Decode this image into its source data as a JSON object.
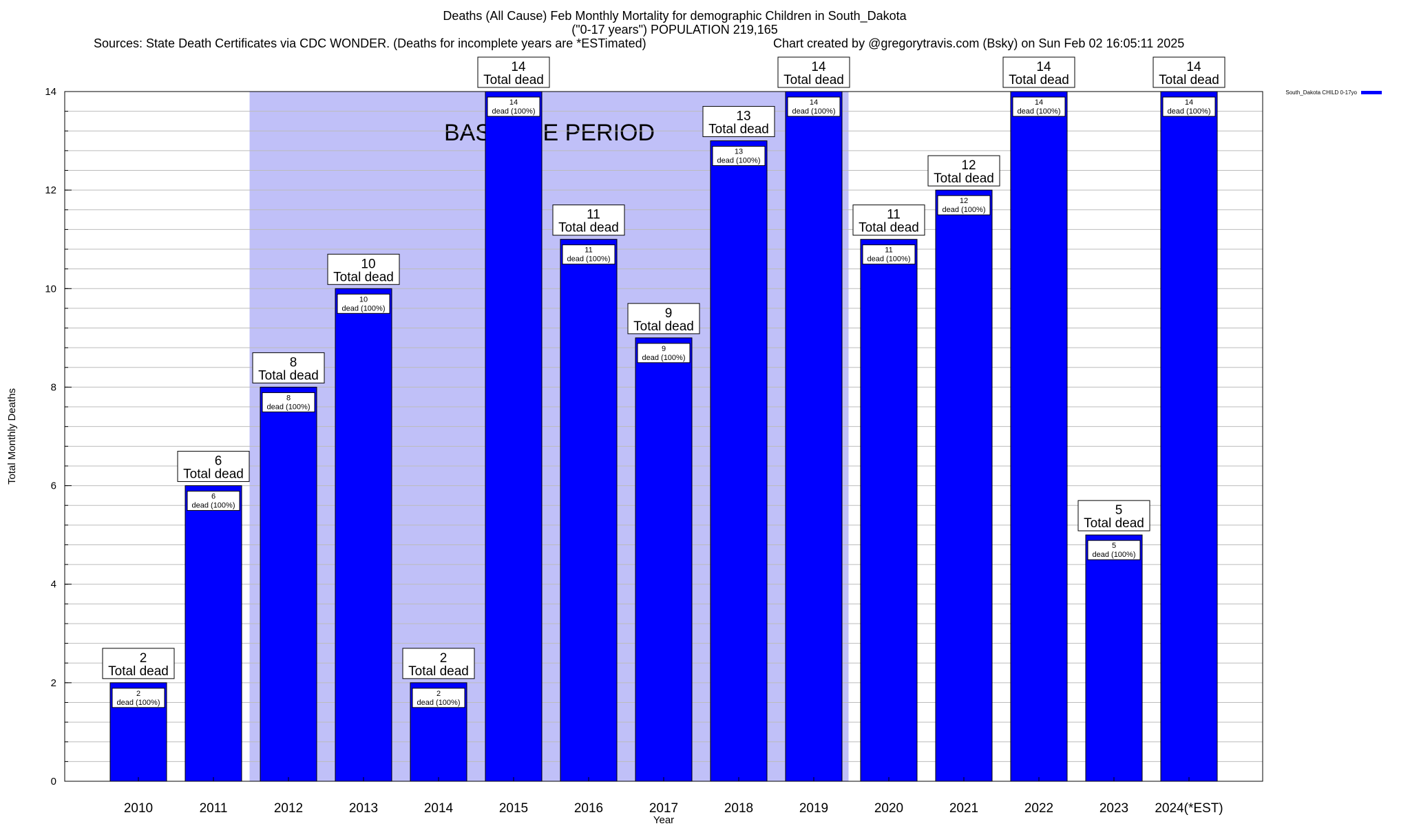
{
  "title": {
    "line1": "Deaths (All Cause) Feb Monthly Mortality for demographic Children in South_Dakota",
    "line2": "(\"0-17 years\") POPULATION 219,165",
    "sources": "Sources: State Death Certificates via CDC WONDER. (Deaths for incomplete years are *ESTimated)",
    "credit": "Chart created by @gregorytravis.com (Bsky) on Sun Feb 02 16:05:11 2025"
  },
  "colors": {
    "bar": "#0000ff",
    "baseline_band": "#c0c0f8",
    "grid": "#bbbbbb"
  },
  "chart_data": {
    "type": "bar",
    "title": "Deaths (All Cause) Feb Monthly Mortality for demographic Children in South_Dakota",
    "xlabel": "Year",
    "ylabel": "Total Monthly Deaths",
    "ylim": [
      0,
      14
    ],
    "yticks": [
      0,
      2,
      4,
      6,
      8,
      10,
      12,
      14
    ],
    "grid": true,
    "legend_position": "top-right",
    "categories": [
      "2010",
      "2011",
      "2012",
      "2013",
      "2014",
      "2015",
      "2016",
      "2017",
      "2018",
      "2019",
      "2020",
      "2021",
      "2022",
      "2023",
      "2024(*EST)"
    ],
    "series": [
      {
        "name": "South_Dakota CHILD 0-17yo",
        "values": [
          2,
          6,
          8,
          10,
          2,
          14,
          11,
          9,
          13,
          14,
          11,
          12,
          14,
          5,
          14
        ]
      }
    ],
    "top_label_text": "Total dead",
    "inner_label_text": "dead (100%)",
    "baseline_band": {
      "label": "BASELINE PERIOD",
      "from": "2012",
      "to": "2019"
    }
  }
}
